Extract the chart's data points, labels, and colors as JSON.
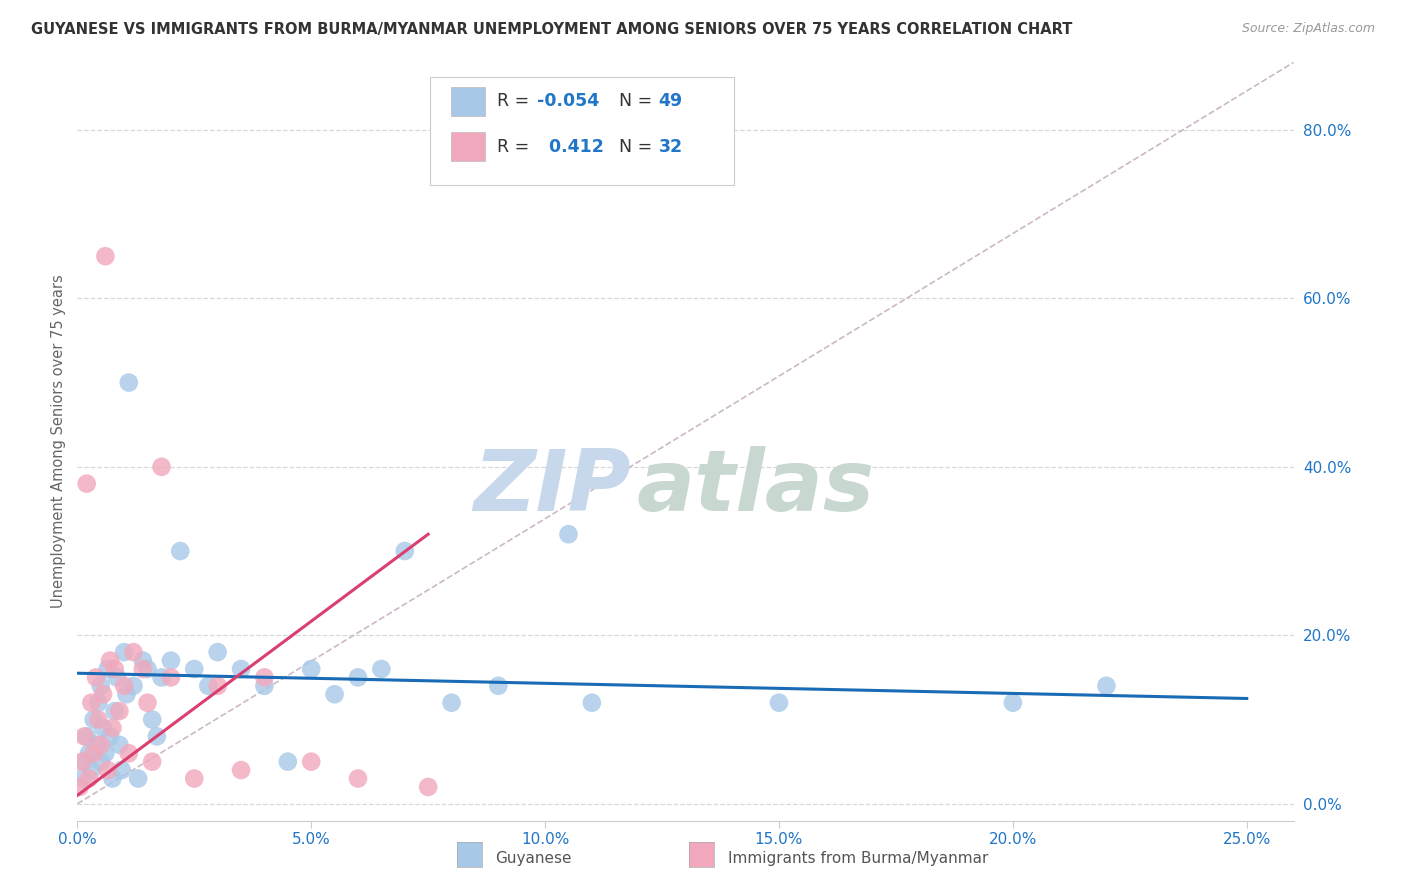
{
  "title": "GUYANESE VS IMMIGRANTS FROM BURMA/MYANMAR UNEMPLOYMENT AMONG SENIORS OVER 75 YEARS CORRELATION CHART",
  "source": "Source: ZipAtlas.com",
  "ylabel": "Unemployment Among Seniors over 75 years",
  "xlabel_vals": [
    0.0,
    5.0,
    10.0,
    15.0,
    20.0,
    25.0
  ],
  "ylabel_vals": [
    0.0,
    20.0,
    40.0,
    60.0,
    80.0
  ],
  "xlim": [
    0.0,
    26.0
  ],
  "ylim": [
    -2.0,
    88.0
  ],
  "guyanese_R": -0.054,
  "guyanese_N": 49,
  "burma_R": 0.412,
  "burma_N": 32,
  "guyanese_color": "#a8c8e8",
  "burma_color": "#f2a8bc",
  "guyanese_line_color": "#1a6bb5",
  "burma_line_color": "#d94070",
  "ref_line_color": "#ccb8c8",
  "watermark_zip_color": "#c8d8ec",
  "watermark_atlas_color": "#c8d8d0",
  "background_color": "#ffffff",
  "grid_color": "#d8d8d8",
  "guyanese_x": [
    0.1,
    0.15,
    0.2,
    0.25,
    0.3,
    0.35,
    0.4,
    0.45,
    0.5,
    0.5,
    0.55,
    0.6,
    0.65,
    0.7,
    0.75,
    0.8,
    0.85,
    0.9,
    0.95,
    1.0,
    1.05,
    1.1,
    1.2,
    1.3,
    1.4,
    1.5,
    1.6,
    1.7,
    1.8,
    2.0,
    2.2,
    2.5,
    2.8,
    3.0,
    3.5,
    4.0,
    4.5,
    5.0,
    5.5,
    6.0,
    6.5,
    7.0,
    8.0,
    9.0,
    10.5,
    11.0,
    15.0,
    20.0,
    22.0
  ],
  "guyanese_y": [
    3.0,
    5.0,
    8.0,
    6.0,
    4.0,
    10.0,
    7.0,
    12.0,
    5.0,
    14.0,
    9.0,
    6.0,
    16.0,
    8.0,
    3.0,
    11.0,
    15.0,
    7.0,
    4.0,
    18.0,
    13.0,
    50.0,
    14.0,
    3.0,
    17.0,
    16.0,
    10.0,
    8.0,
    15.0,
    17.0,
    30.0,
    16.0,
    14.0,
    18.0,
    16.0,
    14.0,
    5.0,
    16.0,
    13.0,
    15.0,
    16.0,
    30.0,
    12.0,
    14.0,
    32.0,
    12.0,
    12.0,
    12.0,
    14.0
  ],
  "burma_x": [
    0.05,
    0.1,
    0.15,
    0.2,
    0.25,
    0.3,
    0.35,
    0.4,
    0.45,
    0.5,
    0.55,
    0.6,
    0.65,
    0.7,
    0.75,
    0.8,
    0.9,
    1.0,
    1.1,
    1.2,
    1.4,
    1.5,
    1.6,
    1.8,
    2.0,
    2.5,
    3.0,
    3.5,
    4.0,
    5.0,
    6.0,
    7.5
  ],
  "burma_y": [
    2.0,
    5.0,
    8.0,
    38.0,
    3.0,
    12.0,
    6.0,
    15.0,
    10.0,
    7.0,
    13.0,
    65.0,
    4.0,
    17.0,
    9.0,
    16.0,
    11.0,
    14.0,
    6.0,
    18.0,
    16.0,
    12.0,
    5.0,
    40.0,
    15.0,
    3.0,
    14.0,
    4.0,
    15.0,
    5.0,
    3.0,
    2.0
  ],
  "guyanese_line_x": [
    0.0,
    25.0
  ],
  "guyanese_line_y": [
    15.5,
    12.5
  ],
  "burma_line_x": [
    0.0,
    7.5
  ],
  "burma_line_y": [
    1.0,
    32.0
  ]
}
